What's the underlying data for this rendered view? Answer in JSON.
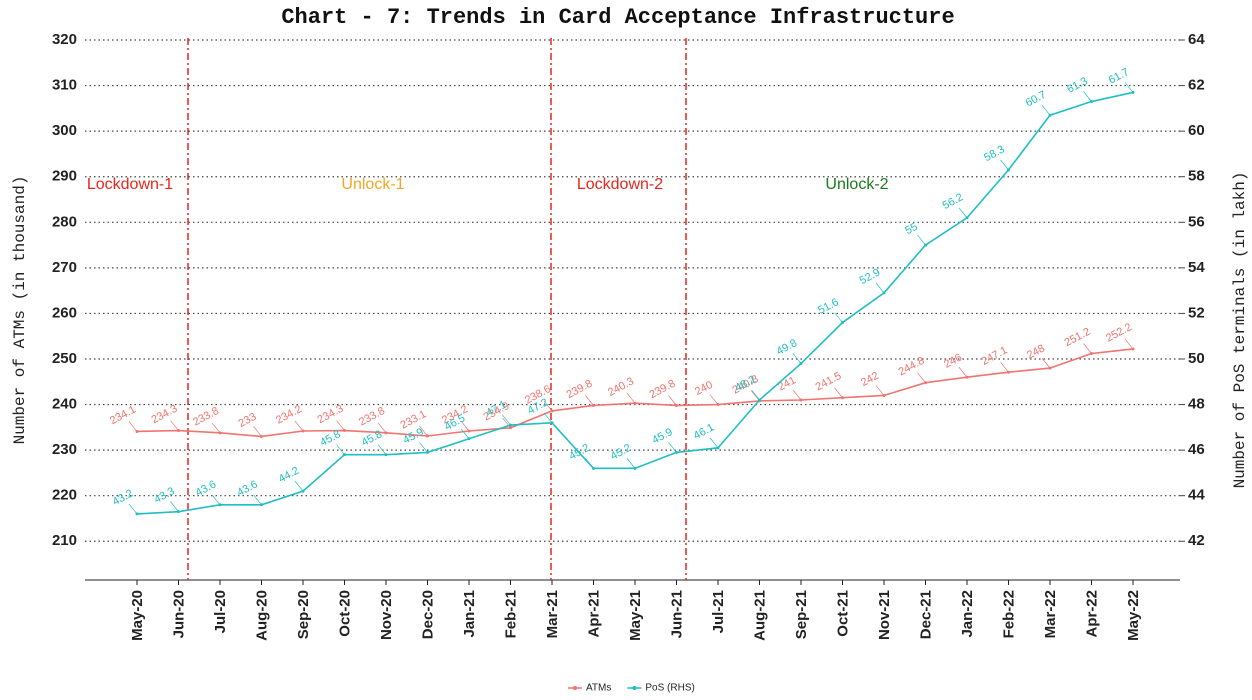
{
  "chart_data": {
    "type": "line",
    "title": "Chart - 7: Trends in Card Acceptance Infrastructure",
    "ylabel": "Number of ATMs (in thousand)",
    "y2label": "Number of PoS terminals (in lakh)",
    "categories": [
      "May-20",
      "Jun-20",
      "Jul-20",
      "Aug-20",
      "Sep-20",
      "Oct-20",
      "Nov-20",
      "Dec-20",
      "Jan-21",
      "Feb-21",
      "Mar-21",
      "Apr-21",
      "May-21",
      "Jun-21",
      "Jul-21",
      "Aug-21",
      "Sep-21",
      "Oct-21",
      "Nov-21",
      "Dec-21",
      "Jan-22",
      "Feb-22",
      "Mar-22",
      "Apr-22",
      "May-22"
    ],
    "series": [
      {
        "name": "ATMs",
        "color": "#f07470",
        "axis": "y",
        "values": [
          234.1,
          234.3,
          233.8,
          233,
          234.2,
          234.3,
          233.8,
          233.1,
          234.2,
          234.9,
          238.6,
          239.8,
          240.3,
          239.8,
          240,
          240.8,
          241,
          241.5,
          242,
          244.8,
          246,
          247.1,
          248,
          251.2,
          252.2
        ]
      },
      {
        "name": "PoS (RHS)",
        "color": "#1fbfc3",
        "axis": "y2",
        "values": [
          43.2,
          43.3,
          43.6,
          43.6,
          44.2,
          45.8,
          45.8,
          45.9,
          46.5,
          47.1,
          47.2,
          45.2,
          45.2,
          45.9,
          46.1,
          48.2,
          49.8,
          51.6,
          52.9,
          55,
          56.2,
          58.3,
          60.7,
          61.3,
          61.7
        ]
      }
    ],
    "ylim": [
      201.5,
      322
    ],
    "yticks": [
      210,
      220,
      230,
      240,
      250,
      260,
      270,
      280,
      290,
      300,
      310,
      320
    ],
    "y2lim": [
      40.3,
      64.4
    ],
    "y2ticks": [
      42,
      44,
      46,
      48,
      50,
      52,
      54,
      56,
      58,
      60,
      62,
      64
    ],
    "grid": true,
    "legend": "bottom",
    "annotations": [
      {
        "text": "Lockdown-1",
        "color": "#e8251c"
      },
      {
        "text": "Unlock-1",
        "color": "#f5a623"
      },
      {
        "text": "Lockdown-2",
        "color": "#e8251c"
      },
      {
        "text": "Unlock-2",
        "color": "#1a7a1a"
      }
    ]
  }
}
